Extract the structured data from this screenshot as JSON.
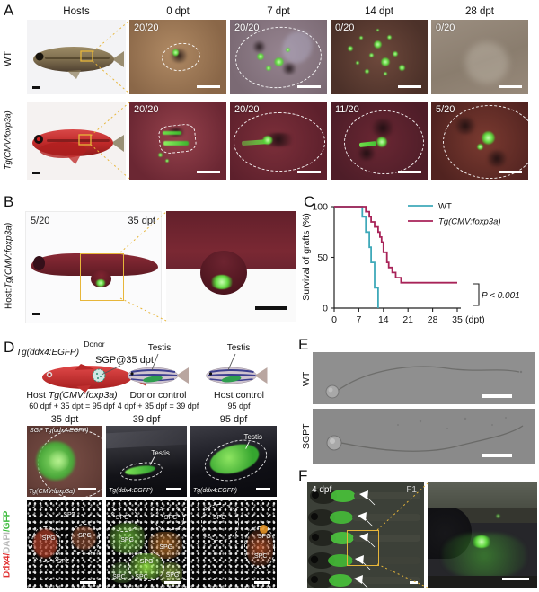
{
  "figure": {
    "panel_a": {
      "letter": "A",
      "column_headers": [
        "Hosts",
        "0 dpt",
        "7 dpt",
        "14 dpt",
        "28 dpt"
      ],
      "rows": [
        {
          "label": "WT",
          "counts": [
            "20/20",
            "20/20",
            "0/20",
            "0/20"
          ]
        },
        {
          "label": "Tg(CMV:foxp3a)",
          "counts": [
            "20/20",
            "20/20",
            "11/20",
            "5/20"
          ]
        }
      ]
    },
    "panel_b": {
      "letter": "B",
      "count": "5/20",
      "timepoint": "35 dpt",
      "host_prefix": "Host: ",
      "host_strain": "Tg(CMV:foxp3a)"
    },
    "panel_c": {
      "letter": "C"
    },
    "panel_d": {
      "letter": "D",
      "donor_label": "Donor",
      "donor_strain": "Tg(ddx4:EGFP)",
      "sgp_label": "SGP@35 dpt",
      "testis_label_1": "Testis",
      "testis_label_2": "Testis",
      "captions": [
        {
          "prefix": "Host ",
          "italic": "Tg(CMV:foxp3a)",
          "sub": "60 dpf + 35 dpt = 95 dpf"
        },
        {
          "prefix": "Donor control",
          "italic": "",
          "sub": "4 dpf + 35 dpf = 39 dpf"
        },
        {
          "prefix": "Host control",
          "italic": "",
          "sub": "95 dpf"
        }
      ],
      "image_headers": [
        "35 dpt",
        "39 dpf",
        "95 dpf"
      ],
      "micrographs": [
        {
          "top_label": "SGP Tg(ddx4:EGFP)",
          "bottom_label": "Tg(CMV:foxp3a)"
        },
        {
          "top_label": "Testis",
          "bottom_label": "Tg(ddx4:EGFP)"
        },
        {
          "top_label": "Testis",
          "bottom_label": "Tg(ddx4:EGFP)"
        }
      ],
      "stain_label": {
        "red": "Ddx4/",
        "gray": "DAPI",
        "green": "/GFP"
      },
      "confocal_labels": [
        [
          "SPZ",
          "SPG",
          "SPC",
          "SPZ"
        ],
        [
          "SPC",
          "SPC",
          "SPG",
          "SPG",
          "SPG",
          "SPC",
          "SPC",
          "SPG"
        ],
        [
          "SPC",
          "SPG",
          "SPC"
        ]
      ]
    },
    "panel_e": {
      "letter": "E",
      "rows": [
        "WT",
        "SGPT"
      ]
    },
    "panel_f": {
      "letter": "F",
      "age": "4 dpf",
      "generation": "F1"
    }
  },
  "chart_data": {
    "type": "line",
    "subtype": "kaplan-meier-step",
    "title": "",
    "xlabel": "(dpt)",
    "ylabel": "Survival of grafts (%)",
    "xlim": [
      0,
      35
    ],
    "ylim": [
      0,
      100
    ],
    "xticks": [
      0,
      7,
      14,
      21,
      28,
      35
    ],
    "yticks": [
      0,
      50,
      100
    ],
    "legend_position": "top-right",
    "annotation": "P < 0.001",
    "grid": false,
    "series": [
      {
        "name": "WT",
        "color": "#3fa9b9",
        "italic": false,
        "steps": [
          [
            0,
            100
          ],
          [
            8,
            100
          ],
          [
            8,
            90
          ],
          [
            9,
            90
          ],
          [
            9,
            75
          ],
          [
            10,
            75
          ],
          [
            10,
            60
          ],
          [
            10.5,
            60
          ],
          [
            10.5,
            45
          ],
          [
            11.5,
            45
          ],
          [
            11.5,
            20
          ],
          [
            12.5,
            20
          ],
          [
            12.5,
            0
          ]
        ]
      },
      {
        "name": "Tg(CMV:foxp3a)",
        "color": "#a82358",
        "italic": true,
        "steps": [
          [
            0,
            100
          ],
          [
            9,
            100
          ],
          [
            9,
            95
          ],
          [
            10,
            95
          ],
          [
            10,
            90
          ],
          [
            10.5,
            90
          ],
          [
            10.5,
            85
          ],
          [
            11.5,
            85
          ],
          [
            11.5,
            80
          ],
          [
            12.5,
            80
          ],
          [
            12.5,
            75
          ],
          [
            13,
            75
          ],
          [
            13,
            70
          ],
          [
            13.5,
            70
          ],
          [
            13.5,
            65
          ],
          [
            14,
            65
          ],
          [
            14,
            55
          ],
          [
            15,
            55
          ],
          [
            15,
            45
          ],
          [
            15.5,
            45
          ],
          [
            15.5,
            40
          ],
          [
            16.5,
            40
          ],
          [
            16.5,
            35
          ],
          [
            17.5,
            35
          ],
          [
            17.5,
            30
          ],
          [
            19,
            30
          ],
          [
            19,
            25
          ],
          [
            35,
            25
          ]
        ]
      }
    ]
  }
}
